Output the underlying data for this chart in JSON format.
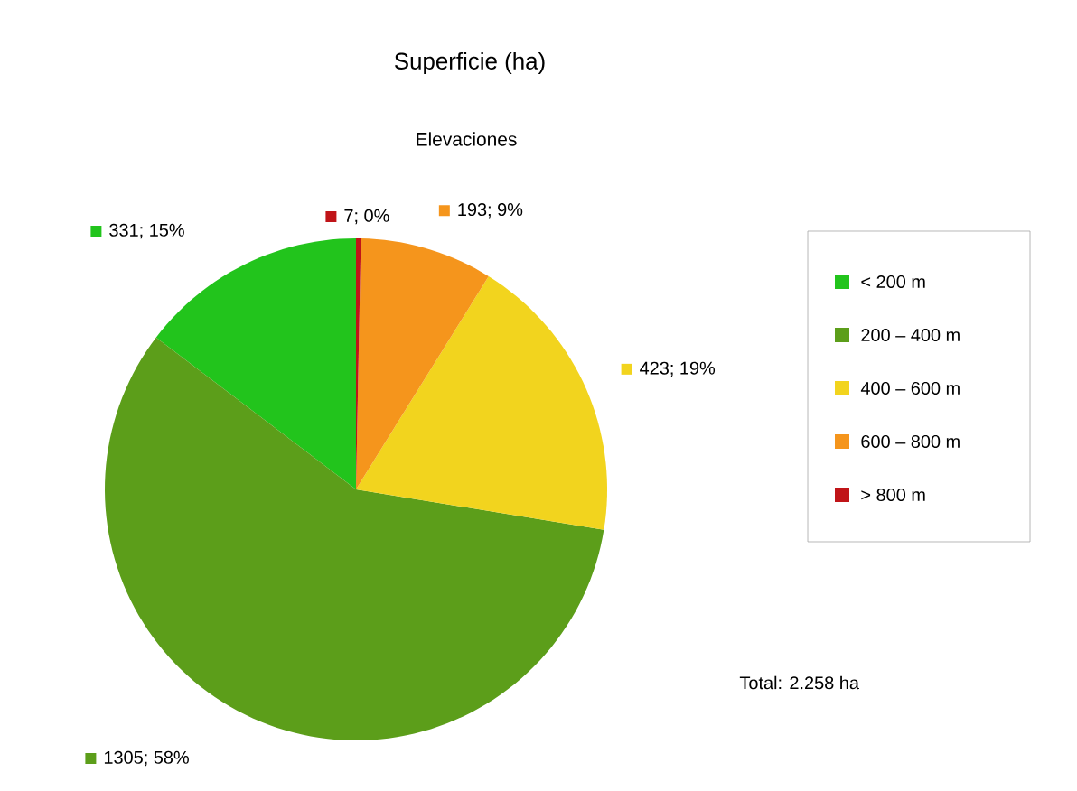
{
  "chart_data": {
    "type": "pie",
    "title": "Superficie (ha)",
    "subtitle": "Elevaciones",
    "categories": [
      "< 200 m",
      "200 – 400 m",
      "400 – 600 m",
      "600 – 800 m",
      "> 800 m"
    ],
    "values": [
      331,
      1305,
      423,
      193,
      7
    ],
    "colors": [
      "#22c41c",
      "#5c9e1a",
      "#f2d41e",
      "#f5951c",
      "#c01418"
    ],
    "value_labels": [
      "331; 15%",
      "1305; 58%",
      "423; 19%",
      "193; 9%",
      "7; 0%"
    ],
    "annotations": [
      "Total: 2.258 ha"
    ],
    "legend": "right"
  }
}
